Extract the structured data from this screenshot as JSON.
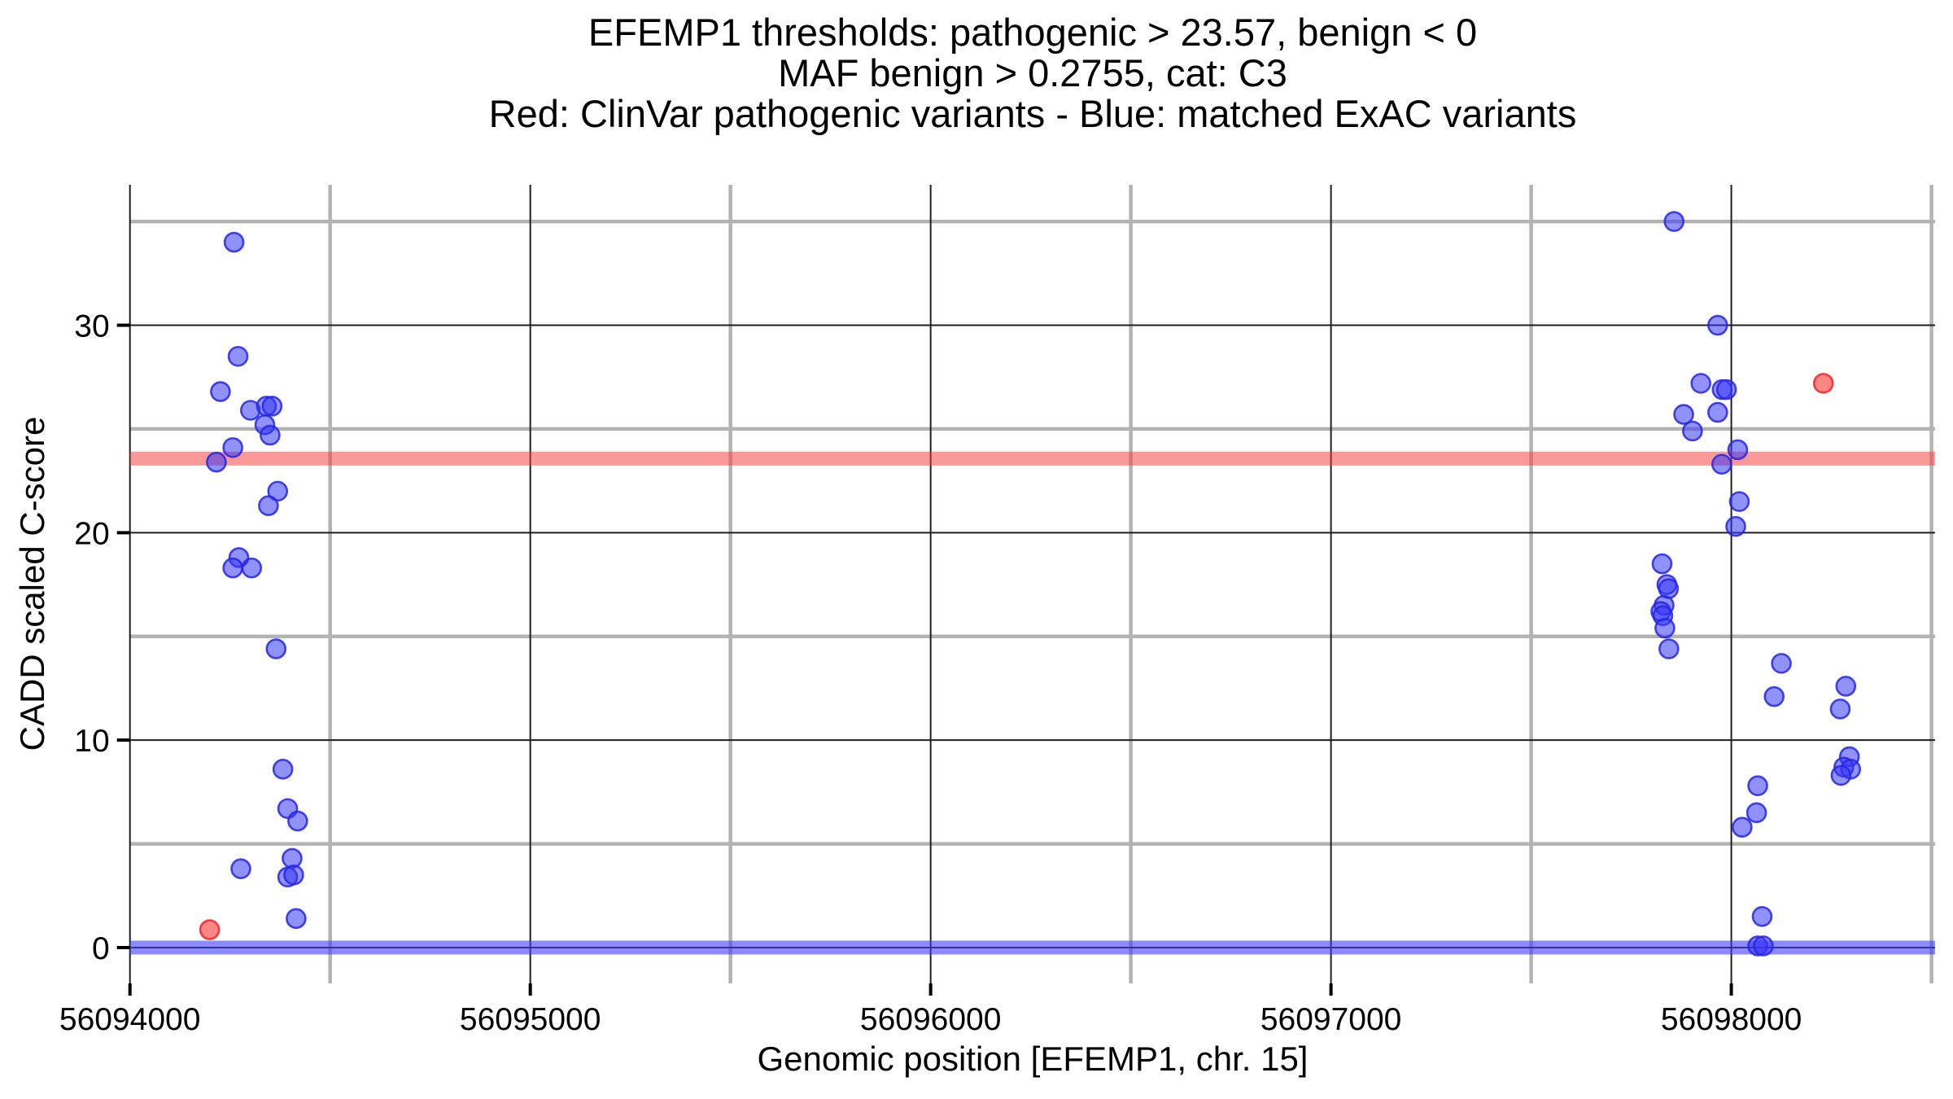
{
  "figure": {
    "title_lines": [
      "EFEMP1 thresholds: pathogenic > 23.57, benign < 0",
      "MAF benign > 0.2755, cat: C3",
      "Red: ClinVar pathogenic variants - Blue: matched ExAC variants"
    ],
    "x_axis_title": "Genomic position [EFEMP1, chr. 15]",
    "y_axis_title": "CADD scaled C-score"
  },
  "chart_data": {
    "type": "scatter",
    "title": "EFEMP1 thresholds: pathogenic > 23.57, benign < 0",
    "subtitle": "MAF benign > 0.2755, cat: C3",
    "legend_note": "Red: ClinVar pathogenic variants - Blue: matched ExAC variants",
    "xlabel": "Genomic position [EFEMP1, chr. 15]",
    "ylabel": "CADD scaled C-score",
    "xlim": [
      56094000,
      56098509
    ],
    "ylim": [
      -1.727,
      36.77
    ],
    "x_ticks": [
      56094000,
      56095000,
      56096000,
      56097000,
      56098000
    ],
    "x_tick_labels": [
      "56094000",
      "56095000",
      "56096000",
      "56097000",
      "56098000"
    ],
    "y_ticks": [
      0,
      10,
      20,
      30
    ],
    "y_tick_labels": [
      "0",
      "10",
      "20",
      "30"
    ],
    "x_minor_ticks": [
      56094500,
      56095500,
      56096500,
      56097500,
      56098500
    ],
    "y_minor_ticks": [
      5,
      15,
      25,
      35
    ],
    "grid": "major dark thin, minor gray thick, white panel, no legend box",
    "thresholds": {
      "pathogenic_cadd": 23.57,
      "benign_cadd": 0,
      "maf_benign": 0.2755,
      "category": "C3"
    },
    "style": {
      "major_grid_color": "#1f1f1f",
      "major_grid_width": 2,
      "minor_grid_color": "#b3b3b3",
      "minor_grid_width": 4.5,
      "tick_color": "#000000",
      "tick_width": 4,
      "tick_length": 15,
      "tick_font_size": 39,
      "band_half_height": 8.5,
      "pathogenic_band_color": "rgba(248,58,58,0.52)",
      "benign_band_color": "rgba(62,62,250,0.60)",
      "point_radius": 11.5,
      "point_stroke_width": 2.6
    },
    "series": [
      {
        "name": "matched ExAC variants",
        "marker": "circle",
        "color_fill": "rgba(55,55,245,0.55)",
        "color_stroke": "rgba(38,38,228,0.85)",
        "points": [
          [
            56094260,
            34.0
          ],
          [
            56094270,
            28.5
          ],
          [
            56094226,
            26.8
          ],
          [
            56094301,
            25.9
          ],
          [
            56094341,
            26.1
          ],
          [
            56094355,
            26.1
          ],
          [
            56094337,
            25.2
          ],
          [
            56094350,
            24.7
          ],
          [
            56094257,
            24.1
          ],
          [
            56094216,
            23.4
          ],
          [
            56094369,
            22.0
          ],
          [
            56094346,
            21.3
          ],
          [
            56094272,
            18.8
          ],
          [
            56094257,
            18.3
          ],
          [
            56094304,
            18.3
          ],
          [
            56094365,
            14.4
          ],
          [
            56094382,
            8.6
          ],
          [
            56094394,
            6.7
          ],
          [
            56094419,
            6.1
          ],
          [
            56094277,
            3.8
          ],
          [
            56094405,
            4.3
          ],
          [
            56094394,
            3.4
          ],
          [
            56094409,
            3.5
          ],
          [
            56094415,
            1.4
          ],
          [
            56097857,
            35.0
          ],
          [
            56097966,
            30.0
          ],
          [
            56097924,
            27.2
          ],
          [
            56097977,
            26.9
          ],
          [
            56097988,
            26.9
          ],
          [
            56097966,
            25.8
          ],
          [
            56097881,
            25.7
          ],
          [
            56097903,
            24.9
          ],
          [
            56098016,
            24.0
          ],
          [
            56097976,
            23.3
          ],
          [
            56098020,
            21.5
          ],
          [
            56098011,
            20.3
          ],
          [
            56097827,
            18.5
          ],
          [
            56097839,
            17.5
          ],
          [
            56097843,
            17.3
          ],
          [
            56097832,
            16.5
          ],
          [
            56097824,
            16.2
          ],
          [
            56097829,
            16.0
          ],
          [
            56097834,
            15.4
          ],
          [
            56097844,
            14.4
          ],
          [
            56098125,
            13.7
          ],
          [
            56098286,
            12.6
          ],
          [
            56098107,
            12.1
          ],
          [
            56098272,
            11.5
          ],
          [
            56098295,
            9.2
          ],
          [
            56098281,
            8.7
          ],
          [
            56098298,
            8.6
          ],
          [
            56098274,
            8.3
          ],
          [
            56098066,
            7.8
          ],
          [
            56098063,
            6.5
          ],
          [
            56098027,
            5.8
          ],
          [
            56098077,
            1.5
          ],
          [
            56098066,
            0.08
          ],
          [
            56098080,
            0.08
          ]
        ]
      },
      {
        "name": "ClinVar pathogenic variants",
        "marker": "circle",
        "color_fill": "rgba(250,62,62,0.62)",
        "color_stroke": "rgba(246,38,38,0.88)",
        "points": [
          [
            56094199,
            0.86
          ],
          [
            56098230,
            27.2
          ]
        ]
      }
    ]
  }
}
